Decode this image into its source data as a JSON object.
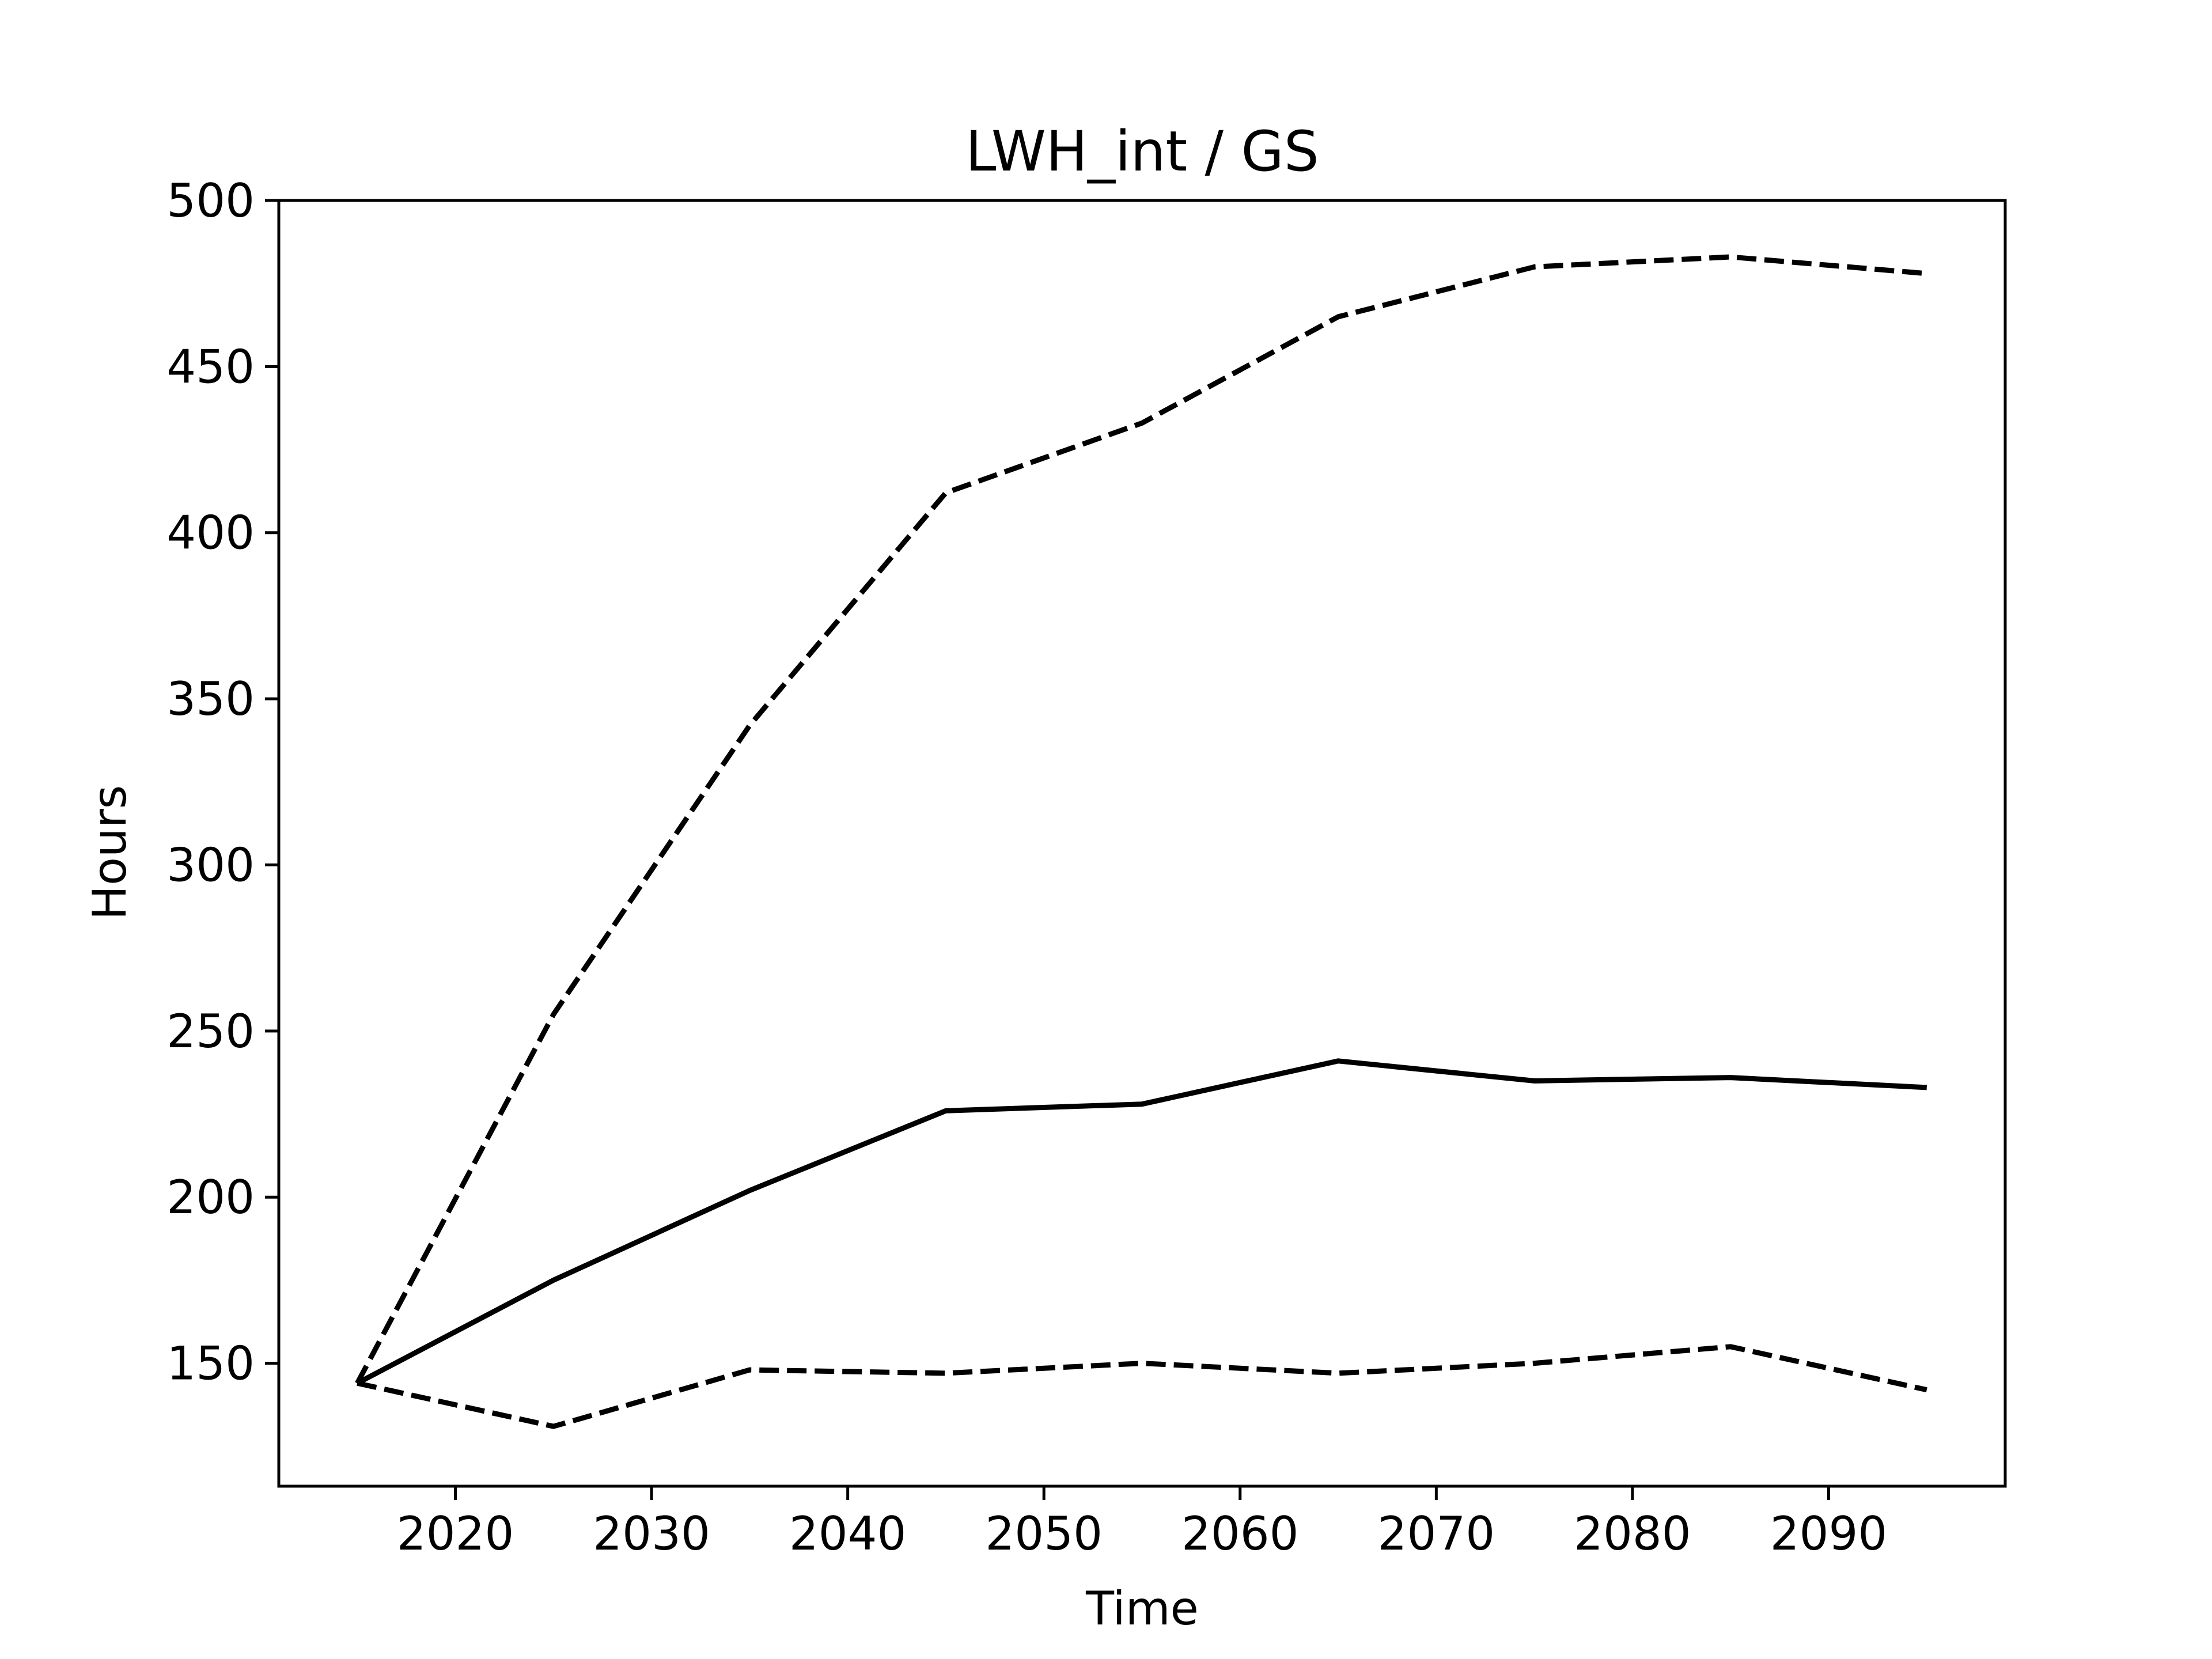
{
  "chart_data": {
    "type": "line",
    "title": "LWH_int / GS",
    "xlabel": "Time",
    "ylabel": "Hours",
    "xlim": [
      2011,
      2099
    ],
    "ylim": [
      113,
      500
    ],
    "xticks": [
      2020,
      2030,
      2040,
      2050,
      2060,
      2070,
      2080,
      2090
    ],
    "yticks": [
      150,
      200,
      250,
      300,
      350,
      400,
      450,
      500
    ],
    "grid": false,
    "legend": "none",
    "x": [
      2015,
      2025,
      2035,
      2045,
      2055,
      2065,
      2075,
      2085,
      2095
    ],
    "series": [
      {
        "style": "dashed",
        "color": "#000000",
        "values": [
          144,
          255,
          342,
          412,
          433,
          465,
          480,
          483,
          478
        ]
      },
      {
        "style": "solid",
        "color": "#000000",
        "values": [
          144,
          175,
          202,
          226,
          228,
          241,
          235,
          236,
          233
        ]
      },
      {
        "style": "dashed",
        "color": "#000000",
        "values": [
          144,
          131,
          148,
          147,
          150,
          147,
          150,
          155,
          142
        ]
      }
    ]
  }
}
